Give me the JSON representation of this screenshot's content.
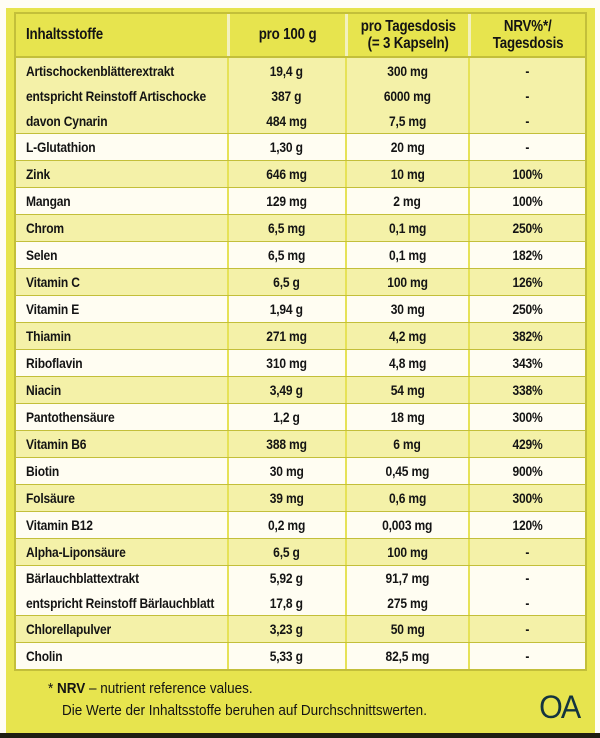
{
  "colors": {
    "page": "#fffdf6",
    "bg": "#e7e44e",
    "row_shaded": "#f4f1a8",
    "row_plain": "#fffdf2",
    "frame": "#c3bf3a",
    "col_sep": "#e6e257",
    "header_sep": "#f3f1bd",
    "text": "#141414",
    "logo": "#14343f",
    "bottom_bar": "#1e1e12"
  },
  "table": {
    "headers": {
      "col1": "Inhaltsstoffe",
      "col2": "pro 100 g",
      "col3_line1": "pro Tagesdosis",
      "col3_line2": "(= 3 Kapseln)",
      "col4_line1": "NRV%*/",
      "col4_line2": "Tagesdosis"
    },
    "blocks": [
      {
        "rows": [
          [
            "Artischockenblätterextrakt",
            "19,4 g",
            "300 mg",
            "-"
          ],
          [
            "entspricht Reinstoff Artischocke",
            "387 g",
            "6000 mg",
            "-"
          ],
          [
            "davon Cynarin",
            "484 mg",
            "7,5 mg",
            "-"
          ]
        ]
      },
      {
        "rows": [
          [
            "L-Glutathion",
            "1,30 g",
            "20 mg",
            "-"
          ]
        ]
      },
      {
        "rows": [
          [
            "Zink",
            "646 mg",
            "10 mg",
            "100%"
          ]
        ]
      },
      {
        "rows": [
          [
            "Mangan",
            "129 mg",
            "2 mg",
            "100%"
          ]
        ]
      },
      {
        "rows": [
          [
            "Chrom",
            "6,5 mg",
            "0,1 mg",
            "250%"
          ]
        ]
      },
      {
        "rows": [
          [
            "Selen",
            "6,5 mg",
            "0,1 mg",
            "182%"
          ]
        ]
      },
      {
        "rows": [
          [
            "Vitamin C",
            "6,5 g",
            "100 mg",
            "126%"
          ]
        ]
      },
      {
        "rows": [
          [
            "Vitamin E",
            "1,94 g",
            "30 mg",
            "250%"
          ]
        ]
      },
      {
        "rows": [
          [
            "Thiamin",
            "271 mg",
            "4,2 mg",
            "382%"
          ]
        ]
      },
      {
        "rows": [
          [
            "Riboflavin",
            "310 mg",
            "4,8 mg",
            "343%"
          ]
        ]
      },
      {
        "rows": [
          [
            "Niacin",
            "3,49 g",
            "54 mg",
            "338%"
          ]
        ]
      },
      {
        "rows": [
          [
            "Pantothensäure",
            "1,2 g",
            "18 mg",
            "300%"
          ]
        ]
      },
      {
        "rows": [
          [
            "Vitamin B6",
            "388 mg",
            "6 mg",
            "429%"
          ]
        ]
      },
      {
        "rows": [
          [
            "Biotin",
            "30 mg",
            "0,45 mg",
            "900%"
          ]
        ]
      },
      {
        "rows": [
          [
            "Folsäure",
            "39 mg",
            "0,6 mg",
            "300%"
          ]
        ]
      },
      {
        "rows": [
          [
            "Vitamin B12",
            "0,2 mg",
            "0,003 mg",
            "120%"
          ]
        ]
      },
      {
        "rows": [
          [
            "Alpha-Liponsäure",
            "6,5 g",
            "100 mg",
            "-"
          ]
        ]
      },
      {
        "rows": [
          [
            "Bärlauchblattextrakt",
            "5,92 g",
            "91,7 mg",
            "-"
          ],
          [
            "entspricht Reinstoff Bärlauchblatt",
            "17,8 g",
            "275 mg",
            "-"
          ]
        ]
      },
      {
        "rows": [
          [
            "Chlorellapulver",
            "3,23 g",
            "50 mg",
            "-"
          ]
        ]
      },
      {
        "rows": [
          [
            "Cholin",
            "5,33 g",
            "82,5 mg",
            "-"
          ]
        ]
      }
    ]
  },
  "footnote": {
    "asterisk": "* ",
    "nrv_bold": "NRV",
    "line1_rest": " – nutrient reference values.",
    "line2": "Die Werte der Inhaltsstoffe beruhen auf Durchschnittswerten."
  },
  "logo_text": "OA"
}
